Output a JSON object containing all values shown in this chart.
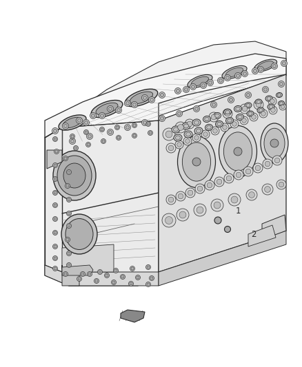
{
  "background_color": "#ffffff",
  "line_color": "#2a2a2a",
  "fig_width": 4.38,
  "fig_height": 5.33,
  "dpi": 100,
  "label_1": "1",
  "label_2": "2",
  "label_fontsize": 8.5
}
